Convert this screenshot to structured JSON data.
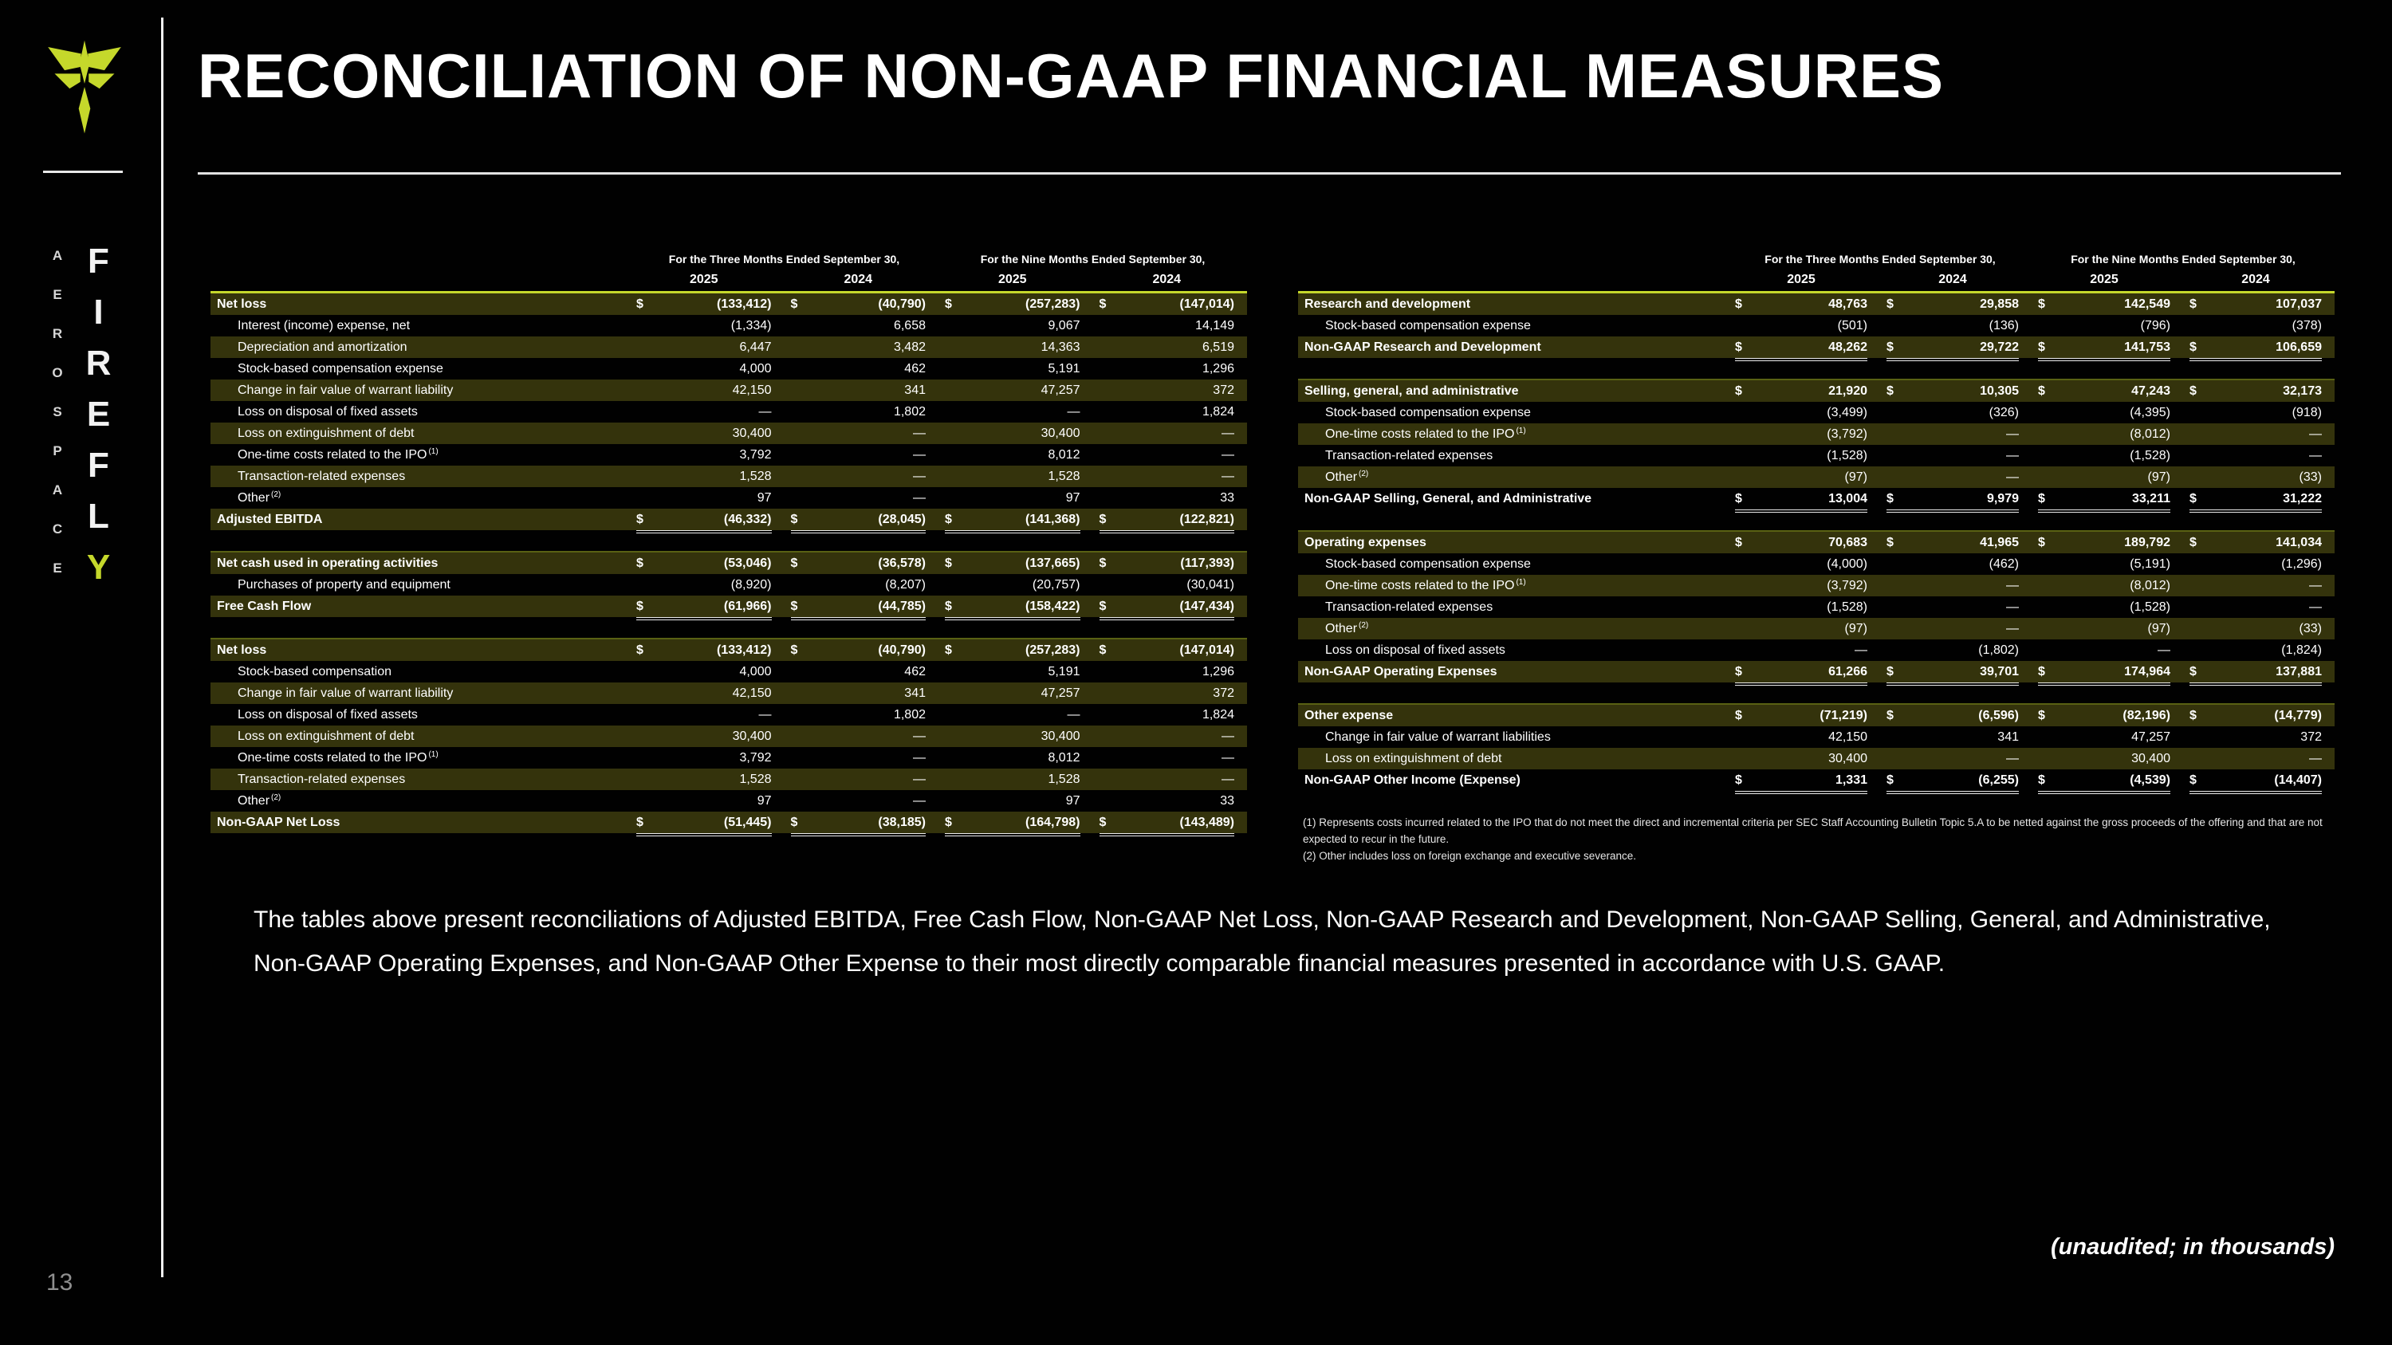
{
  "slide": {
    "title": "RECONCILIATION OF NON-GAAP FINANCIAL MEASURES",
    "page_number": "13",
    "unaudited_note": "(unaudited; in thousands)",
    "body_paragraph": "The tables above present reconciliations of Adjusted EBITDA, Free Cash Flow, Non-GAAP Net Loss, Non-GAAP Research and Development, Non-GAAP Selling, General, and Administrative, Non-GAAP Operating Expenses, and Non-GAAP Other Expense to their most directly comparable financial measures presented in accordance with U.S. GAAP."
  },
  "brand": {
    "logo_icon": "firefly-logo",
    "name_letters": [
      "F",
      "I",
      "R",
      "E",
      "F",
      "L",
      "Y"
    ],
    "sub_letters": [
      "A",
      "E",
      "R",
      "O",
      "S",
      "P",
      "A",
      "C",
      "E"
    ],
    "accent_color": "#c5d82b",
    "row_stripe_color": "#34330c"
  },
  "table_headers": {
    "period_groups": [
      "For the Three Months Ended September 30,",
      "For the Nine Months Ended September 30,"
    ],
    "years": [
      "2025",
      "2024",
      "2025",
      "2024"
    ]
  },
  "left_table": {
    "sections": [
      {
        "rows": [
          {
            "label": "Net loss",
            "style": "header",
            "dollar": true,
            "values": [
              "(133,412)",
              "(40,790)",
              "(257,283)",
              "(147,014)"
            ]
          },
          {
            "label": "Interest (income) expense, net",
            "style": "indent",
            "dollar": false,
            "values": [
              "(1,334)",
              "6,658",
              "9,067",
              "14,149"
            ]
          },
          {
            "label": "Depreciation and amortization",
            "style": "indent",
            "dollar": false,
            "values": [
              "6,447",
              "3,482",
              "14,363",
              "6,519"
            ]
          },
          {
            "label": "Stock-based compensation expense",
            "style": "indent",
            "dollar": false,
            "values": [
              "4,000",
              "462",
              "5,191",
              "1,296"
            ]
          },
          {
            "label": "Change in fair value of warrant liability",
            "style": "indent",
            "dollar": false,
            "values": [
              "42,150",
              "341",
              "47,257",
              "372"
            ]
          },
          {
            "label": "Loss on disposal of fixed assets",
            "style": "indent",
            "dollar": false,
            "values": [
              "—",
              "1,802",
              "—",
              "1,824"
            ]
          },
          {
            "label": "Loss on extinguishment of debt",
            "style": "indent",
            "dollar": false,
            "values": [
              "30,400",
              "—",
              "30,400",
              "—"
            ]
          },
          {
            "label": "One-time costs related to the IPO",
            "sup": "(1)",
            "style": "indent",
            "dollar": false,
            "values": [
              "3,792",
              "—",
              "8,012",
              "—"
            ]
          },
          {
            "label": "Transaction-related expenses",
            "style": "indent",
            "dollar": false,
            "values": [
              "1,528",
              "—",
              "1,528",
              "—"
            ]
          },
          {
            "label": "Other",
            "sup": "(2)",
            "style": "indent",
            "dollar": false,
            "values": [
              "97",
              "—",
              "97",
              "33"
            ]
          },
          {
            "label": "Adjusted EBITDA",
            "style": "total",
            "dollar": true,
            "values": [
              "(46,332)",
              "(28,045)",
              "(141,368)",
              "(122,821)"
            ]
          }
        ]
      },
      {
        "rows": [
          {
            "label": "Net cash used in operating activities",
            "style": "header",
            "dollar": true,
            "values": [
              "(53,046)",
              "(36,578)",
              "(137,665)",
              "(117,393)"
            ]
          },
          {
            "label": "Purchases of property and equipment",
            "style": "indent",
            "dollar": false,
            "values": [
              "(8,920)",
              "(8,207)",
              "(20,757)",
              "(30,041)"
            ]
          },
          {
            "label": "Free Cash Flow",
            "style": "total",
            "dollar": true,
            "values": [
              "(61,966)",
              "(44,785)",
              "(158,422)",
              "(147,434)"
            ]
          }
        ]
      },
      {
        "rows": [
          {
            "label": "Net loss",
            "style": "header",
            "dollar": true,
            "values": [
              "(133,412)",
              "(40,790)",
              "(257,283)",
              "(147,014)"
            ]
          },
          {
            "label": "Stock-based compensation",
            "style": "indent",
            "dollar": false,
            "values": [
              "4,000",
              "462",
              "5,191",
              "1,296"
            ]
          },
          {
            "label": "Change in fair value of warrant liability",
            "style": "indent",
            "dollar": false,
            "values": [
              "42,150",
              "341",
              "47,257",
              "372"
            ]
          },
          {
            "label": "Loss on disposal of fixed assets",
            "style": "indent",
            "dollar": false,
            "values": [
              "—",
              "1,802",
              "—",
              "1,824"
            ]
          },
          {
            "label": "Loss on extinguishment of debt",
            "style": "indent",
            "dollar": false,
            "values": [
              "30,400",
              "—",
              "30,400",
              "—"
            ]
          },
          {
            "label": "One-time costs related to the IPO",
            "sup": "(1)",
            "style": "indent",
            "dollar": false,
            "values": [
              "3,792",
              "—",
              "8,012",
              "—"
            ]
          },
          {
            "label": "Transaction-related expenses",
            "style": "indent",
            "dollar": false,
            "values": [
              "1,528",
              "—",
              "1,528",
              "—"
            ]
          },
          {
            "label": "Other",
            "sup": "(2)",
            "style": "indent",
            "dollar": false,
            "values": [
              "97",
              "—",
              "97",
              "33"
            ]
          },
          {
            "label": "Non-GAAP Net Loss",
            "style": "total",
            "dollar": true,
            "values": [
              "(51,445)",
              "(38,185)",
              "(164,798)",
              "(143,489)"
            ]
          }
        ]
      }
    ]
  },
  "right_table": {
    "sections": [
      {
        "rows": [
          {
            "label": "Research and development",
            "style": "header",
            "dollar": true,
            "values": [
              "48,763",
              "29,858",
              "142,549",
              "107,037"
            ]
          },
          {
            "label": "Stock-based compensation expense",
            "style": "indent",
            "dollar": false,
            "values": [
              "(501)",
              "(136)",
              "(796)",
              "(378)"
            ]
          },
          {
            "label": "Non-GAAP Research and Development",
            "style": "total",
            "dollar": true,
            "values": [
              "48,262",
              "29,722",
              "141,753",
              "106,659"
            ]
          }
        ]
      },
      {
        "rows": [
          {
            "label": "Selling, general, and administrative",
            "style": "header",
            "dollar": true,
            "values": [
              "21,920",
              "10,305",
              "47,243",
              "32,173"
            ]
          },
          {
            "label": "Stock-based compensation expense",
            "style": "indent",
            "dollar": false,
            "values": [
              "(3,499)",
              "(326)",
              "(4,395)",
              "(918)"
            ]
          },
          {
            "label": "One-time costs related to the IPO",
            "sup": "(1)",
            "style": "indent",
            "dollar": false,
            "values": [
              "(3,792)",
              "—",
              "(8,012)",
              "—"
            ]
          },
          {
            "label": "Transaction-related expenses",
            "style": "indent",
            "dollar": false,
            "values": [
              "(1,528)",
              "—",
              "(1,528)",
              "—"
            ]
          },
          {
            "label": "Other",
            "sup": "(2)",
            "style": "indent",
            "dollar": false,
            "values": [
              "(97)",
              "—",
              "(97)",
              "(33)"
            ]
          },
          {
            "label": "Non-GAAP Selling, General, and Administrative",
            "style": "total",
            "dollar": true,
            "values": [
              "13,004",
              "9,979",
              "33,211",
              "31,222"
            ]
          }
        ]
      },
      {
        "rows": [
          {
            "label": "Operating expenses",
            "style": "header",
            "dollar": true,
            "values": [
              "70,683",
              "41,965",
              "189,792",
              "141,034"
            ]
          },
          {
            "label": "Stock-based compensation expense",
            "style": "indent",
            "dollar": false,
            "values": [
              "(4,000)",
              "(462)",
              "(5,191)",
              "(1,296)"
            ]
          },
          {
            "label": "One-time costs related to the IPO",
            "sup": "(1)",
            "style": "indent",
            "dollar": false,
            "values": [
              "(3,792)",
              "—",
              "(8,012)",
              "—"
            ]
          },
          {
            "label": "Transaction-related expenses",
            "style": "indent",
            "dollar": false,
            "values": [
              "(1,528)",
              "—",
              "(1,528)",
              "—"
            ]
          },
          {
            "label": "Other",
            "sup": "(2)",
            "style": "indent",
            "dollar": false,
            "values": [
              "(97)",
              "—",
              "(97)",
              "(33)"
            ]
          },
          {
            "label": "Loss on disposal of fixed assets",
            "style": "indent",
            "dollar": false,
            "values": [
              "—",
              "(1,802)",
              "—",
              "(1,824)"
            ]
          },
          {
            "label": "Non-GAAP Operating Expenses",
            "style": "total",
            "dollar": true,
            "values": [
              "61,266",
              "39,701",
              "174,964",
              "137,881"
            ]
          }
        ]
      },
      {
        "rows": [
          {
            "label": "Other expense",
            "style": "header",
            "dollar": true,
            "values": [
              "(71,219)",
              "(6,596)",
              "(82,196)",
              "(14,779)"
            ]
          },
          {
            "label": "Change in fair value of warrant liabilities",
            "style": "indent",
            "dollar": false,
            "values": [
              "42,150",
              "341",
              "47,257",
              "372"
            ]
          },
          {
            "label": "Loss on extinguishment of debt",
            "style": "indent",
            "dollar": false,
            "values": [
              "30,400",
              "—",
              "30,400",
              "—"
            ]
          },
          {
            "label": "Non-GAAP Other Income (Expense)",
            "style": "total",
            "dollar": true,
            "values": [
              "1,331",
              "(6,255)",
              "(4,539)",
              "(14,407)"
            ]
          }
        ]
      }
    ],
    "footnotes": [
      "(1) Represents costs incurred related to the IPO that do not meet the direct and incremental criteria per SEC Staff Accounting Bulletin Topic 5.A to be netted against the gross proceeds of the offering and that are not expected to recur in the future.",
      "(2) Other includes loss on foreign exchange and executive severance."
    ]
  }
}
